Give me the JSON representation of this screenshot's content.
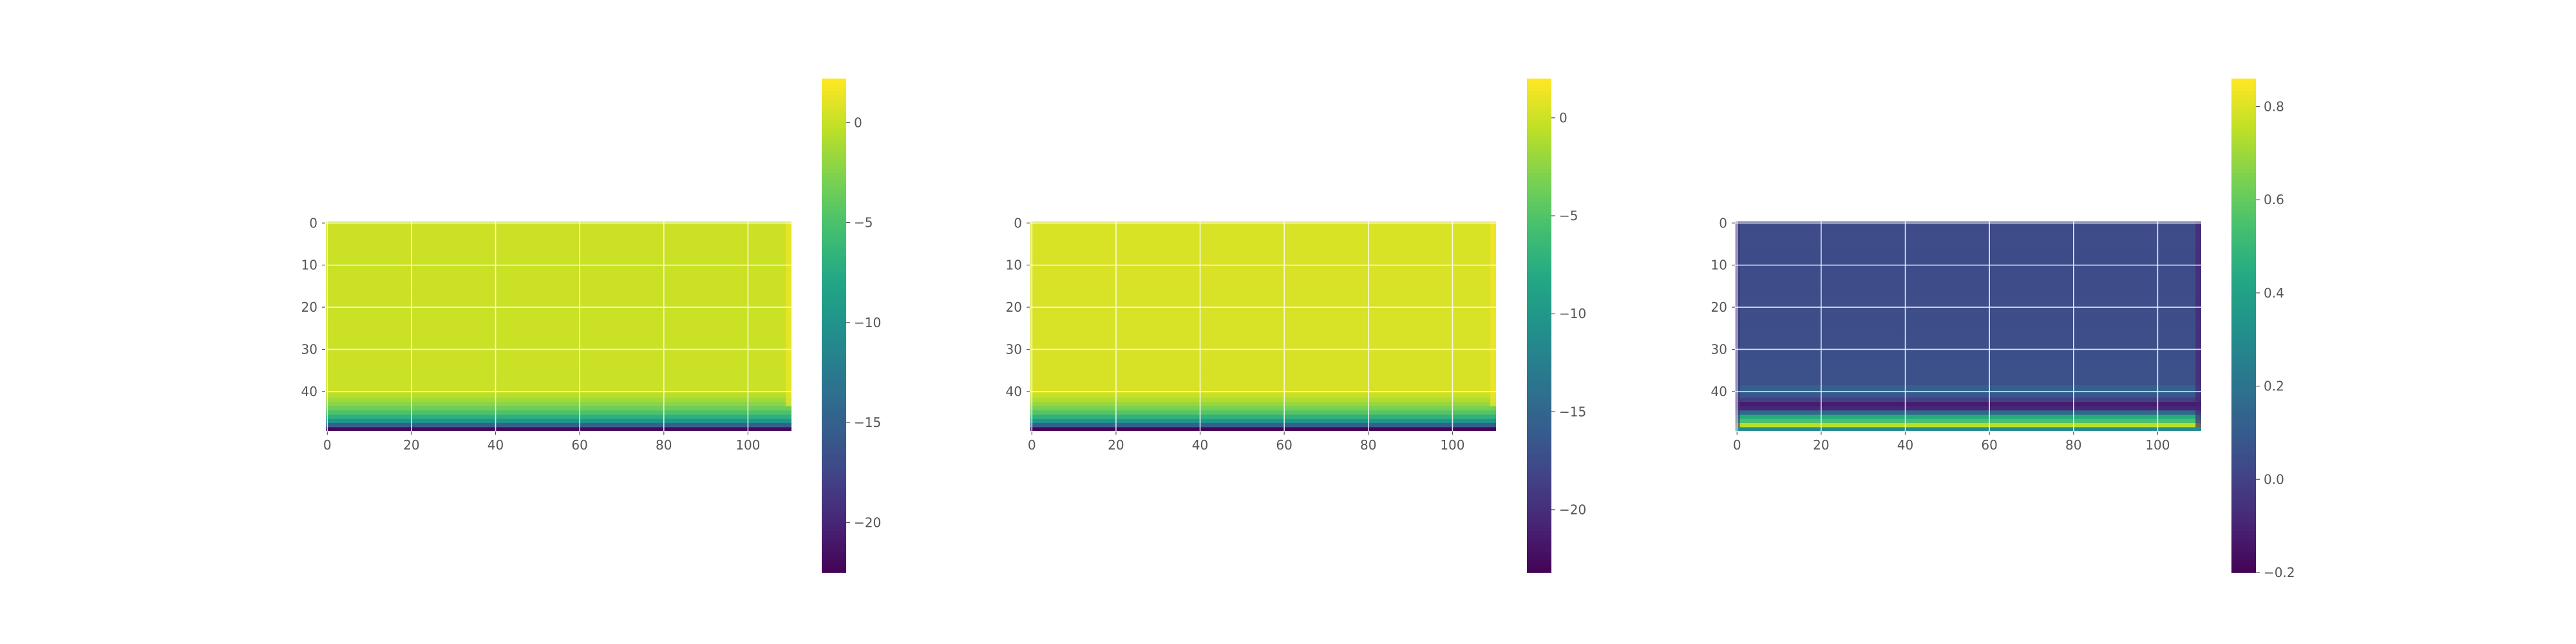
{
  "chart_data": [
    {
      "type": "heatmap",
      "title": "",
      "xlabel": "",
      "ylabel": "",
      "x_range": [
        0,
        110
      ],
      "y_range": [
        0,
        49
      ],
      "y_inverted": true,
      "xticks": [
        "0",
        "20",
        "40",
        "60",
        "80",
        "100"
      ],
      "yticks": [
        "0",
        "10",
        "20",
        "30",
        "40"
      ],
      "grid": true,
      "colormap": "viridis",
      "colorbar": {
        "range": [
          -22.5,
          2.2
        ],
        "ticks": [
          "0",
          "−5",
          "−10",
          "−15",
          "−20"
        ],
        "tick_values": [
          0,
          -5,
          -10,
          -15,
          -20
        ]
      },
      "pattern": "uniform near 0.3 over rows 0-40, falling steeply to about -22 in the last rows",
      "row_profile": [
        {
          "row": 0,
          "value": 0.3
        },
        {
          "row": 40,
          "value": 0.2
        },
        {
          "row": 41,
          "value": -0.5
        },
        {
          "row": 42,
          "value": -1.3
        },
        {
          "row": 43,
          "value": -2.2
        },
        {
          "row": 44,
          "value": -3.3
        },
        {
          "row": 45,
          "value": -4.8
        },
        {
          "row": 46,
          "value": -6.8
        },
        {
          "row": 47,
          "value": -9.8
        },
        {
          "row": 48,
          "value": -15
        },
        {
          "row": 49,
          "value": -22
        }
      ],
      "right_edge_value": 1.8
    },
    {
      "type": "heatmap",
      "title": "",
      "xlabel": "",
      "ylabel": "",
      "x_range": [
        0,
        110
      ],
      "y_range": [
        0,
        49
      ],
      "y_inverted": true,
      "xticks": [
        "0",
        "20",
        "40",
        "60",
        "80",
        "100"
      ],
      "yticks": [
        "0",
        "10",
        "20",
        "30",
        "40"
      ],
      "grid": true,
      "colormap": "viridis",
      "colorbar": {
        "range": [
          -23.2,
          2
        ],
        "ticks": [
          "0",
          "−5",
          "−10",
          "−15",
          "−20"
        ],
        "tick_values": [
          0,
          -5,
          -10,
          -15,
          -20
        ]
      },
      "pattern": "uniform near 0.6 over rows 0-40, falling steeply to about -23 in the last rows",
      "row_profile": [
        {
          "row": 0,
          "value": 0.6
        },
        {
          "row": 40,
          "value": 0.5
        },
        {
          "row": 41,
          "value": -0.2
        },
        {
          "row": 42,
          "value": -1.0
        },
        {
          "row": 43,
          "value": -2.0
        },
        {
          "row": 44,
          "value": -3.2
        },
        {
          "row": 45,
          "value": -4.8
        },
        {
          "row": 46,
          "value": -7.0
        },
        {
          "row": 47,
          "value": -10.2
        },
        {
          "row": 48,
          "value": -15.5
        },
        {
          "row": 49,
          "value": -23
        }
      ],
      "right_edge_value": 1.8
    },
    {
      "type": "heatmap",
      "title": "",
      "xlabel": "",
      "ylabel": "",
      "x_range": [
        0,
        110
      ],
      "y_range": [
        0,
        49
      ],
      "y_inverted": true,
      "xticks": [
        "0",
        "20",
        "40",
        "60",
        "80",
        "100"
      ],
      "yticks": [
        "0",
        "10",
        "20",
        "30",
        "40"
      ],
      "grid": true,
      "colormap": "viridis",
      "colorbar": {
        "range": [
          -0.2,
          0.86
        ],
        "ticks": [
          "0.8",
          "0.6",
          "0.4",
          "0.2",
          "0.0",
          "−0.2"
        ],
        "tick_values": [
          0.8,
          0.6,
          0.4,
          0.2,
          0.0,
          -0.2
        ]
      },
      "pattern": "mostly about 0.05; slightly higher band near row 40; dark band rows 43-44; bright band around rows 46-48 reaching about 0.8",
      "row_profile": [
        {
          "row": 0,
          "value": 0.04
        },
        {
          "row": 38,
          "value": 0.06
        },
        {
          "row": 39,
          "value": 0.12
        },
        {
          "row": 40,
          "value": 0.14
        },
        {
          "row": 41,
          "value": 0.08
        },
        {
          "row": 42,
          "value": 0.0
        },
        {
          "row": 43,
          "value": -0.12
        },
        {
          "row": 44,
          "value": -0.08
        },
        {
          "row": 45,
          "value": 0.15
        },
        {
          "row": 46,
          "value": 0.45
        },
        {
          "row": 47,
          "value": 0.55
        },
        {
          "row": 48,
          "value": 0.75
        },
        {
          "row": 49,
          "value": 0.3
        }
      ],
      "left_edge_value": -0.05,
      "right_edge_value": -0.1
    }
  ]
}
